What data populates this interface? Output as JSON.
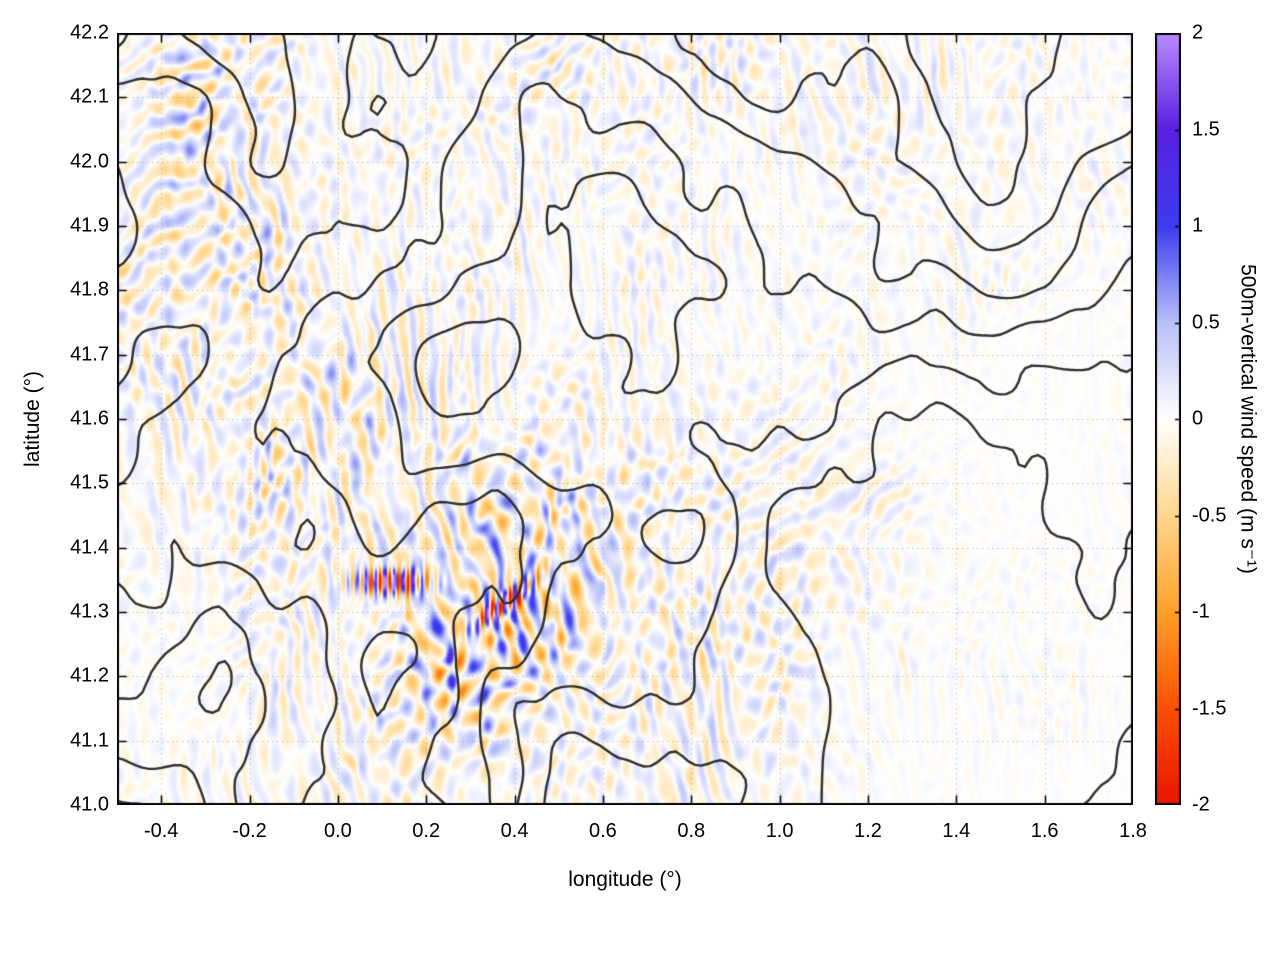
{
  "figure": {
    "background": "#ffffff",
    "border_color": "#000000",
    "grid_color": "#9a9a9a"
  },
  "chart_data": {
    "type": "heatmap",
    "title": "",
    "xlabel": "longitude (°)",
    "ylabel": "latitude (°)",
    "xlim": [
      -0.5,
      1.8
    ],
    "ylim": [
      41.0,
      42.2
    ],
    "xtick_labels": [
      "-0.4",
      "-0.2",
      "0.0",
      "0.2",
      "0.4",
      "0.6",
      "0.8",
      "1.0",
      "1.2",
      "1.4",
      "1.6",
      "1.8"
    ],
    "ytick_labels": [
      "41.0",
      "41.1",
      "41.2",
      "41.3",
      "41.4",
      "41.5",
      "41.6",
      "41.7",
      "41.8",
      "41.9",
      "42.0",
      "42.1",
      "42.2"
    ],
    "grid": true,
    "colorbar": {
      "label": "500m-vertical wind speed (m s⁻¹)",
      "lim": [
        -2,
        2
      ],
      "tick_labels": [
        "2",
        "1.5",
        "1",
        "0.5",
        "0",
        "-0.5",
        "-1",
        "-1.5",
        "-2"
      ],
      "colormap_stops": [
        {
          "value": -2.0,
          "color": "#e81500"
        },
        {
          "value": -1.5,
          "color": "#fc5000"
        },
        {
          "value": -1.0,
          "color": "#ffa028"
        },
        {
          "value": -0.5,
          "color": "#ffd78f"
        },
        {
          "value": 0.0,
          "color": "#ffffff"
        },
        {
          "value": 0.5,
          "color": "#b8c0f8"
        },
        {
          "value": 1.0,
          "color": "#3c3cf0"
        },
        {
          "value": 1.5,
          "color": "#5a20e0"
        },
        {
          "value": 2.0,
          "color": "#b98cff"
        }
      ]
    },
    "overlay_contours": {
      "description": "terrain elevation contour lines",
      "color": "#2e2e2e",
      "width": 2.4
    },
    "visible_features": [
      "intense alternating updraft/downdraft bands (|w| up to 2 m s⁻¹) near lat 41.30–41.37, lon 0.0–0.45",
      "orange downdraft plumes (about -1 m s⁻¹) around lon 0.3–0.8, lat 41.0–41.25",
      "fine blue/orange gravity-wave streaks over high terrain in the west and centre",
      "mostly calm (white) field over the contour-free southeastern plain, lon > 1.2"
    ]
  }
}
